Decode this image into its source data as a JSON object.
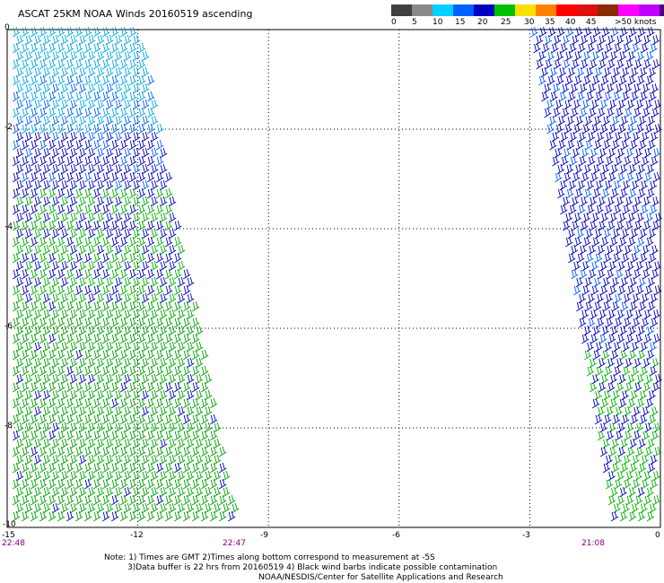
{
  "title": "ASCAT 25KM NOAA Winds 20160519 ascending",
  "legend": {
    "labels": [
      "0",
      "5",
      "10",
      "15",
      "20",
      "25",
      "30",
      "35",
      "40",
      "45",
      ">50 knots"
    ],
    "colors": [
      "#404040",
      "#888888",
      "#00d0ff",
      "#0060ff",
      "#0000c0",
      "#00c000",
      "#f8e000",
      "#ff8000",
      "#ff0000",
      "#e01010",
      "#8b2a00",
      "#ff00ff",
      "#c000ff",
      "#4a0080"
    ]
  },
  "axes": {
    "x_ticks": [
      "-15",
      "-12",
      "-9",
      "-6",
      "-3",
      "0"
    ],
    "y_ticks": [
      "0",
      "-2",
      "-4",
      "-6",
      "-8",
      "-10"
    ],
    "x_range": [
      -15,
      0
    ],
    "y_range": [
      0,
      -10
    ]
  },
  "times": [
    "22:48",
    "22:47",
    "21:08"
  ],
  "notes": {
    "line1": "Note: 1) Times are GMT 2)Times along bottom correspond to measurement at -5S",
    "line2": "3)Data buffer is 22 hrs from 20160519 4) Black wind barbs indicate possible contamination",
    "line3": "NOAA/NESDIS/Center for Satellite Applications and Research"
  }
}
